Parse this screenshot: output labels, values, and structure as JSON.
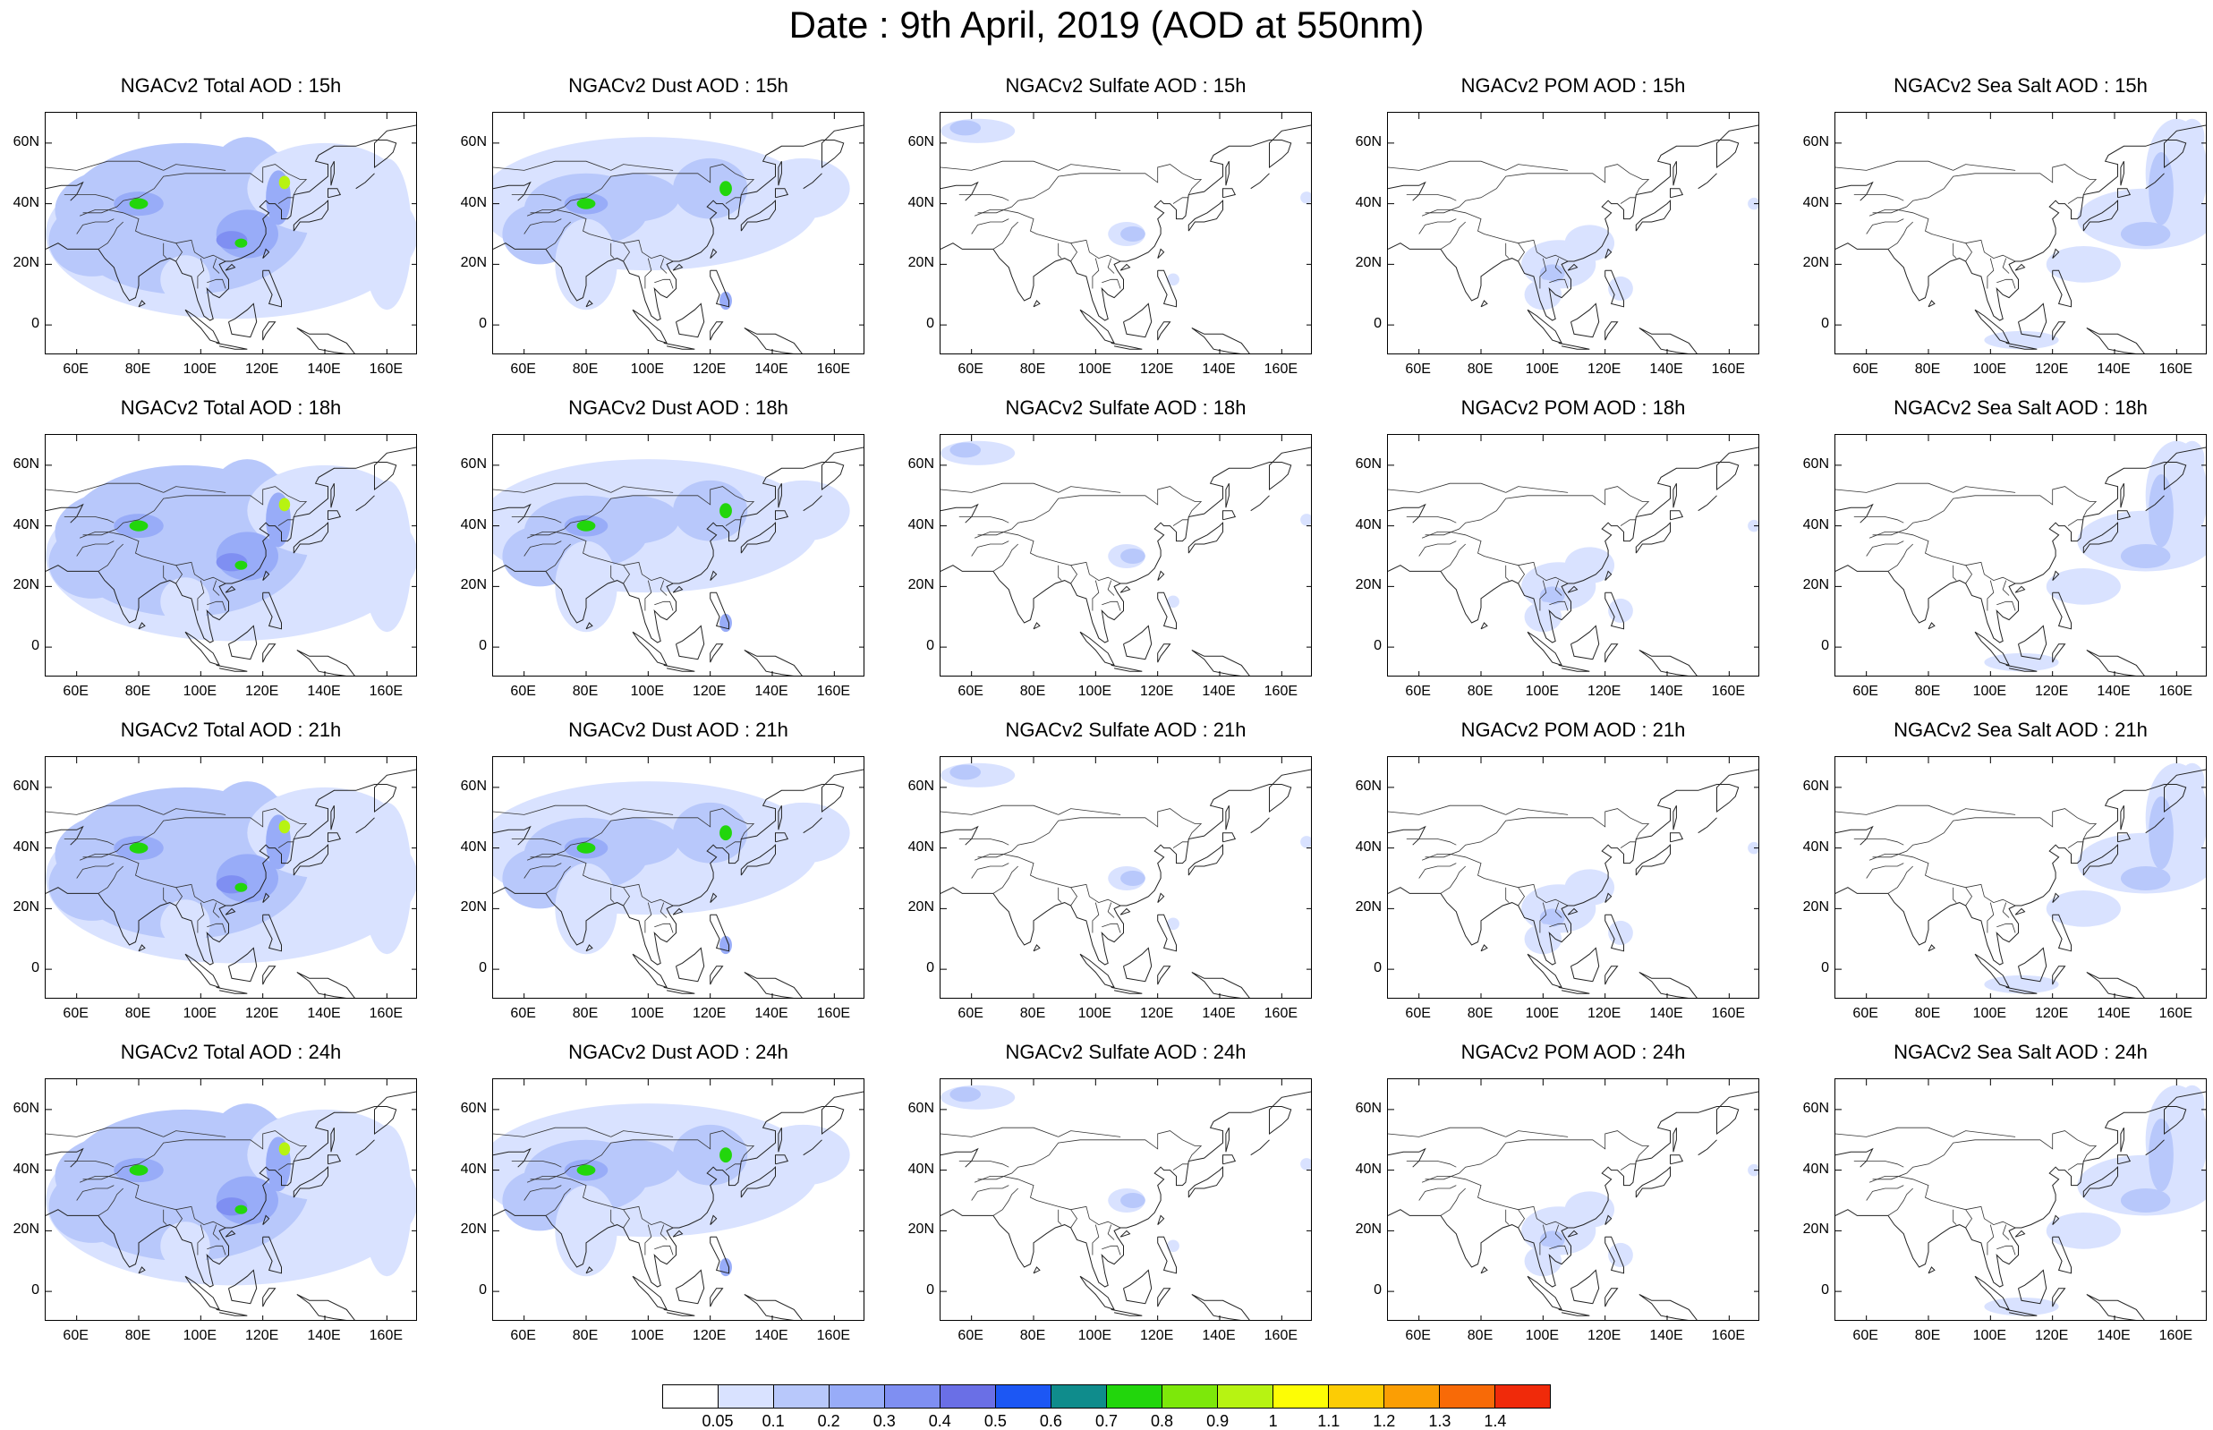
{
  "title": "Date : 9th April, 2019 (AOD at 550nm)",
  "panels": [
    {
      "title": "NGACv2 Total AOD : 15h",
      "species": "total"
    },
    {
      "title": "NGACv2 Dust AOD : 15h",
      "species": "dust"
    },
    {
      "title": "NGACv2 Sulfate AOD : 15h",
      "species": "sulfate"
    },
    {
      "title": "NGACv2 POM AOD : 15h",
      "species": "pom"
    },
    {
      "title": "NGACv2 Sea Salt AOD : 15h",
      "species": "seasalt"
    },
    {
      "title": "NGACv2 Total AOD : 18h",
      "species": "total"
    },
    {
      "title": "NGACv2 Dust AOD : 18h",
      "species": "dust"
    },
    {
      "title": "NGACv2 Sulfate AOD : 18h",
      "species": "sulfate"
    },
    {
      "title": "NGACv2 POM AOD : 18h",
      "species": "pom"
    },
    {
      "title": "NGACv2 Sea Salt AOD : 18h",
      "species": "seasalt"
    },
    {
      "title": "NGACv2 Total AOD : 21h",
      "species": "total"
    },
    {
      "title": "NGACv2 Dust AOD : 21h",
      "species": "dust"
    },
    {
      "title": "NGACv2 Sulfate AOD : 21h",
      "species": "sulfate"
    },
    {
      "title": "NGACv2 POM AOD : 21h",
      "species": "pom"
    },
    {
      "title": "NGACv2 Sea Salt AOD : 21h",
      "species": "seasalt"
    },
    {
      "title": "NGACv2 Total AOD : 24h",
      "species": "total"
    },
    {
      "title": "NGACv2 Dust AOD : 24h",
      "species": "dust"
    },
    {
      "title": "NGACv2 Sulfate AOD : 24h",
      "species": "sulfate"
    },
    {
      "title": "NGACv2 POM AOD : 24h",
      "species": "pom"
    },
    {
      "title": "NGACv2 Sea Salt  AOD : 24h",
      "species": "seasalt"
    }
  ],
  "lat_ticks": [
    "60N",
    "40N",
    "20N",
    "0"
  ],
  "lat_values": [
    60,
    40,
    20,
    0
  ],
  "lon_ticks": [
    "60E",
    "80E",
    "100E",
    "120E",
    "140E",
    "160E"
  ],
  "lon_values": [
    60,
    80,
    100,
    120,
    140,
    160
  ],
  "map_extent": {
    "lon": [
      50,
      170
    ],
    "lat": [
      -10,
      70
    ]
  },
  "colorbar": {
    "labels": [
      "0.05",
      "0.1",
      "0.2",
      "0.3",
      "0.4",
      "0.5",
      "0.6",
      "0.7",
      "0.8",
      "0.9",
      "1",
      "1.1",
      "1.2",
      "1.3",
      "1.4"
    ],
    "colors": [
      "#ffffff",
      "#d9e2ff",
      "#b8c8fb",
      "#98acf8",
      "#7f8ff2",
      "#6a6fe6",
      "#1c57f4",
      "#0f8c8c",
      "#22d60c",
      "#7de80a",
      "#b7f312",
      "#fdfd05",
      "#fccc05",
      "#fb9e04",
      "#f86a07",
      "#f02a0a"
    ]
  },
  "colors": {
    "light_blue": "#d9e2ff",
    "mid_blue": "#b8c8fb",
    "blue": "#98acf8",
    "deep_blue": "#7f8ff2",
    "violet": "#6a6fe6",
    "green": "#22d60c",
    "yellow_green": "#b7f312"
  }
}
